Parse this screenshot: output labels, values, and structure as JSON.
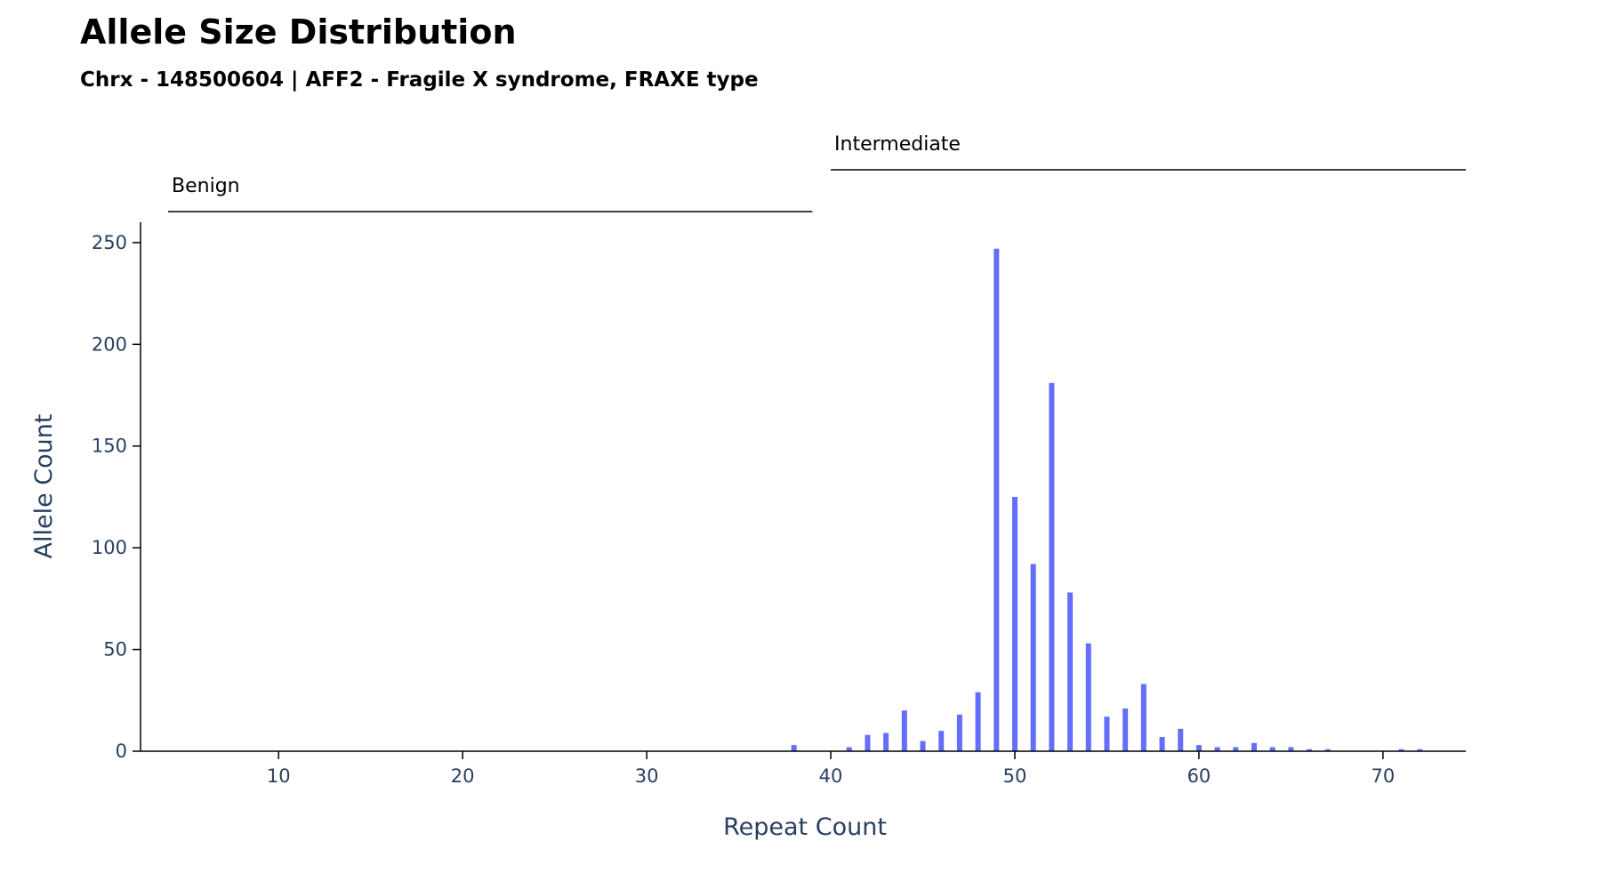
{
  "chart_data": {
    "type": "bar",
    "title": "Allele Size Distribution",
    "subtitle": "Chrx - 148500604 | AFF2 - Fragile X syndrome, FRAXE type",
    "xlabel": "Repeat Count",
    "ylabel": "Allele Count",
    "xlim": [
      2.5,
      74.5
    ],
    "ylim": [
      0,
      260
    ],
    "xticks": [
      10,
      20,
      30,
      40,
      50,
      60,
      70
    ],
    "yticks": [
      0,
      50,
      100,
      150,
      200,
      250
    ],
    "bar_color": "#636efa",
    "grid": false,
    "ranges": [
      {
        "label": "Benign",
        "start": 4,
        "end": 39
      },
      {
        "label": "Intermediate",
        "start": 40,
        "end": 74.5
      }
    ],
    "x": [
      38,
      41,
      42,
      43,
      44,
      45,
      46,
      47,
      48,
      49,
      50,
      51,
      52,
      53,
      54,
      55,
      56,
      57,
      58,
      59,
      60,
      61,
      62,
      63,
      64,
      65,
      66,
      67,
      71,
      72
    ],
    "values": [
      3,
      2,
      8,
      9,
      20,
      5,
      10,
      18,
      29,
      247,
      125,
      92,
      181,
      78,
      53,
      17,
      21,
      33,
      7,
      11,
      3,
      2,
      2,
      4,
      2,
      2,
      1,
      1,
      1,
      1
    ]
  }
}
